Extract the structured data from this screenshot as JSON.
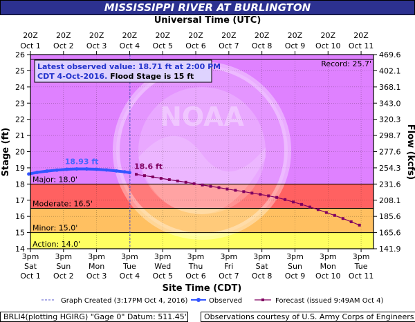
{
  "chart_data": {
    "type": "line",
    "title": "MISSISSIPPI RIVER AT BURLINGTON",
    "top_axis_title": "Universal Time (UTC)",
    "bottom_axis_title": "Site Time (CDT)",
    "ylabel_left": "Stage (ft)",
    "ylabel_right": "Flow (kcfs)",
    "ylim": [
      14,
      26
    ],
    "x_range_days": [
      0,
      10.375
    ],
    "top_ticks": [
      {
        "l1": "20Z",
        "l2": "Oct 1"
      },
      {
        "l1": "20Z",
        "l2": "Oct 2"
      },
      {
        "l1": "20Z",
        "l2": "Oct 3"
      },
      {
        "l1": "20Z",
        "l2": "Oct 4"
      },
      {
        "l1": "20Z",
        "l2": "Oct 5"
      },
      {
        "l1": "20Z",
        "l2": "Oct 6"
      },
      {
        "l1": "20Z",
        "l2": "Oct 7"
      },
      {
        "l1": "20Z",
        "l2": "Oct 8"
      },
      {
        "l1": "20Z",
        "l2": "Oct 9"
      },
      {
        "l1": "20Z",
        "l2": "Oct 10"
      },
      {
        "l1": "20Z",
        "l2": "Oct 11"
      }
    ],
    "bottom_ticks": [
      {
        "l1": "3pm",
        "l2": "Sat",
        "l3": "Oct 1"
      },
      {
        "l1": "3pm",
        "l2": "Sun",
        "l3": "Oct 2"
      },
      {
        "l1": "3pm",
        "l2": "Mon",
        "l3": "Oct 3"
      },
      {
        "l1": "3pm",
        "l2": "Tue",
        "l3": "Oct 4"
      },
      {
        "l1": "3pm",
        "l2": "Wed",
        "l3": "Oct 5"
      },
      {
        "l1": "3pm",
        "l2": "Thu",
        "l3": "Oct 6"
      },
      {
        "l1": "3pm",
        "l2": "Fri",
        "l3": "Oct 7"
      },
      {
        "l1": "3pm",
        "l2": "Sat",
        "l3": "Oct 8"
      },
      {
        "l1": "3pm",
        "l2": "Sun",
        "l3": "Oct 9"
      },
      {
        "l1": "3pm",
        "l2": "Mon",
        "l3": "Oct 10"
      },
      {
        "l1": "3pm",
        "l2": "Tue",
        "l3": "Oct 11"
      }
    ],
    "left_ticks": [
      "14",
      "15",
      "16",
      "17",
      "18",
      "19",
      "20",
      "21",
      "22",
      "23",
      "24",
      "25",
      "26"
    ],
    "right_ticks": [
      {
        "stage": 14,
        "label": "141.9"
      },
      {
        "stage": 15,
        "label": "165.6"
      },
      {
        "stage": 16,
        "label": "185.6"
      },
      {
        "stage": 17,
        "label": "208.1"
      },
      {
        "stage": 18,
        "label": "231.6"
      },
      {
        "stage": 19,
        "label": "254.3"
      },
      {
        "stage": 20,
        "label": "277.6"
      },
      {
        "stage": 21,
        "label": "298.7"
      },
      {
        "stage": 22,
        "label": "320.3"
      },
      {
        "stage": 23,
        "label": "343.0"
      },
      {
        "stage": 24,
        "label": "368.1"
      },
      {
        "stage": 25,
        "label": "402.1"
      },
      {
        "stage": 26,
        "label": "469.6"
      }
    ],
    "stage_bands": [
      {
        "name": "Action",
        "label": "Action: 14.0'",
        "from": 14,
        "to": 15,
        "color": "#ffff00"
      },
      {
        "name": "Minor",
        "label": "Minor: 15.0'",
        "from": 15,
        "to": 16.5,
        "color": "#ff9900"
      },
      {
        "name": "Moderate",
        "label": "Moderate: 16.5'",
        "from": 16.5,
        "to": 18,
        "color": "#ff0000"
      },
      {
        "name": "Major",
        "label": "Major: 18.0'",
        "from": 18,
        "to": 26,
        "color": "#cc33ff"
      }
    ],
    "record": {
      "value": 25.7,
      "label": "Record: 25.7'"
    },
    "graph_created_day": 3.01,
    "observed": {
      "name": "Observed",
      "color": "#3355ff",
      "x": [
        -0.05,
        0.2,
        0.5,
        0.8,
        1.1,
        1.4,
        1.7,
        2.0,
        2.3,
        2.6,
        2.85,
        3.0
      ],
      "y": [
        18.62,
        18.72,
        18.8,
        18.86,
        18.91,
        18.93,
        18.93,
        18.91,
        18.87,
        18.81,
        18.75,
        18.71
      ],
      "peak_label": "18.93 ft",
      "peak_x": 1.55
    },
    "forecast": {
      "name": "Forecast",
      "color": "#800060",
      "x": [
        3.2,
        3.45,
        3.7,
        3.95,
        4.2,
        4.45,
        4.7,
        4.95,
        5.2,
        5.45,
        5.7,
        5.95,
        6.2,
        6.45,
        6.7,
        6.95,
        7.2,
        7.45,
        7.7,
        7.95,
        8.2,
        8.45,
        8.7,
        8.95,
        9.2,
        9.45,
        9.7,
        9.95
      ],
      "y": [
        18.6,
        18.52,
        18.44,
        18.35,
        18.27,
        18.19,
        18.11,
        18.02,
        17.94,
        17.86,
        17.78,
        17.69,
        17.61,
        17.53,
        17.44,
        17.36,
        17.27,
        17.17,
        17.04,
        16.89,
        16.74,
        16.58,
        16.42,
        16.24,
        16.06,
        15.87,
        15.67,
        15.46
      ],
      "first_label": "18.6 ft"
    },
    "annotation": {
      "line1": "Latest observed value: 18.71 ft at 2:00 PM",
      "line2a": "CDT 4-Oct-2016.",
      "line2b": " Flood Stage is 15 ft"
    },
    "legend": {
      "created": "Graph Created (3:17PM Oct 4, 2016)",
      "observed": "Observed",
      "forecast": "Forecast (issued 9:49AM Oct 4)"
    },
    "footer_left": "BRLI4(plotting HGIRG) \"Gage 0\" Datum: 511.45'",
    "footer_right": "Observations courtesy of U.S. Army Corps of Engineers",
    "watermark": "NOAA NATIONAL OCEANIC AND ATMOSPHERIC ADMINISTRATION U.S. DEPARTMENT OF COMMERCE"
  }
}
